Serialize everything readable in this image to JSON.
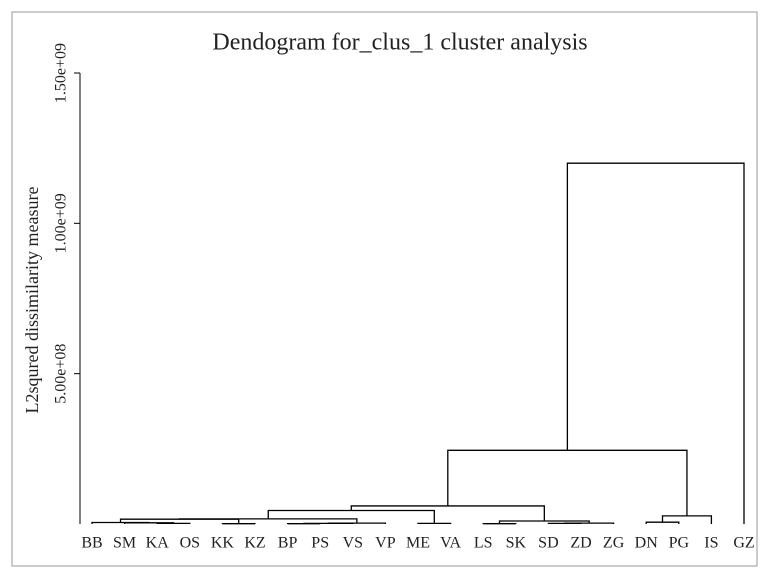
{
  "chart_data": {
    "type": "dendrogram",
    "title": "Dendogram for_clus_1 cluster analysis",
    "y_label": "L2squred dissimilarity measure",
    "categories": [
      "BB",
      "SM",
      "KA",
      "OS",
      "KK",
      "KZ",
      "BP",
      "PS",
      "VS",
      "VP",
      "ME",
      "VA",
      "LS",
      "SK",
      "SD",
      "ZD",
      "ZG",
      "DN",
      "PG",
      "IS",
      "GZ"
    ],
    "merges": [
      [
        2,
        3,
        2000000
      ],
      [
        1,
        21,
        4000000
      ],
      [
        0,
        22,
        5000000
      ],
      [
        4,
        5,
        1000000
      ],
      [
        23,
        24,
        16000000
      ],
      [
        6,
        7,
        1000000
      ],
      [
        26,
        8,
        2000000
      ],
      [
        27,
        9,
        3000000
      ],
      [
        25,
        28,
        17000000
      ],
      [
        10,
        11,
        2000000
      ],
      [
        29,
        30,
        45000000
      ],
      [
        12,
        13,
        1000000
      ],
      [
        14,
        15,
        2000000
      ],
      [
        33,
        16,
        3000000
      ],
      [
        32,
        34,
        10000000
      ],
      [
        31,
        35,
        60000000
      ],
      [
        17,
        18,
        6000000
      ],
      [
        37,
        19,
        27000000
      ],
      [
        36,
        38,
        245000000
      ],
      [
        39,
        20,
        1200000000
      ]
    ],
    "color": "#000000",
    "ylim": [
      0,
      1500000000
    ],
    "yticks": [
      {
        "value": 500000000,
        "label": "5.00e+08"
      },
      {
        "value": 1000000000,
        "label": "1.00e+09"
      },
      {
        "value": 1500000000,
        "label": "1.50e+09"
      }
    ]
  }
}
